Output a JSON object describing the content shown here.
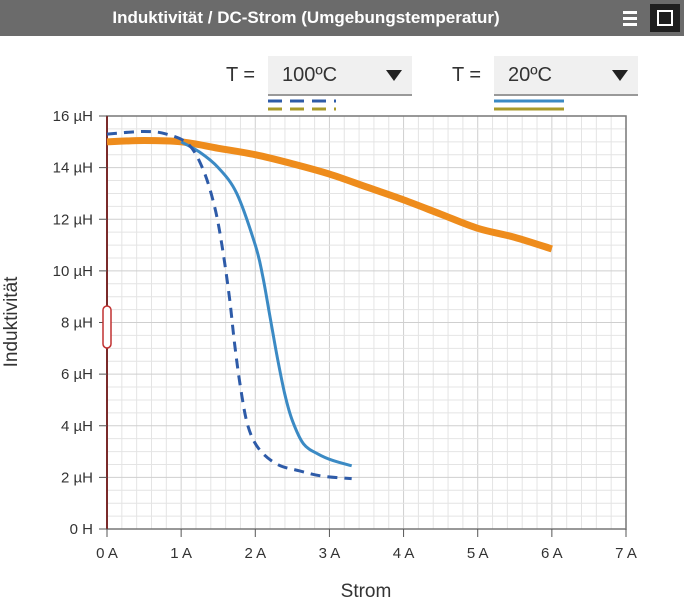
{
  "window": {
    "title": "Induktivität / DC-Strom (Umgebungstemperatur)"
  },
  "controls": {
    "left": {
      "label": "T =",
      "value": "100ºC"
    },
    "right": {
      "label": "T =",
      "value": "20ºC"
    }
  },
  "chart_data": {
    "type": "line",
    "xlabel": "Strom",
    "ylabel": "Induktivität",
    "xlim": [
      0,
      7
    ],
    "ylim": [
      0,
      16
    ],
    "xticks": [
      "0 A",
      "1 A",
      "2 A",
      "3 A",
      "4 A",
      "5 A",
      "6 A",
      "7 A"
    ],
    "yticks": [
      "0 H",
      "2 µH",
      "4 µH",
      "6 µH",
      "8 µH",
      "10 µH",
      "12 µH",
      "14 µH",
      "16 µH"
    ],
    "grid": true,
    "series": [
      {
        "temperature": "20ºC",
        "color": "#ee8c1c",
        "dash": "solid",
        "x": [
          0,
          0.5,
          1,
          1.5,
          2,
          2.5,
          3,
          3.5,
          4,
          4.5,
          5,
          5.5,
          6
        ],
        "y": [
          15.0,
          15.05,
          15.0,
          14.75,
          14.5,
          14.15,
          13.75,
          13.25,
          12.75,
          12.2,
          11.65,
          11.3,
          10.85
        ]
      },
      {
        "temperature": "20ºC",
        "color": "#3b8ac4",
        "dash": "solid",
        "x": [
          1,
          1.25,
          1.5,
          1.75,
          2,
          2.1,
          2.2,
          2.3,
          2.4,
          2.5,
          2.65,
          2.85,
          3.05,
          3.3
        ],
        "y": [
          15.0,
          14.6,
          14.0,
          13.0,
          11.0,
          9.8,
          8.2,
          6.6,
          5.2,
          4.2,
          3.3,
          2.9,
          2.65,
          2.45
        ]
      },
      {
        "temperature": "100ºC",
        "color": "#2e5ba8",
        "dash": "dashed",
        "x": [
          0,
          0.5,
          0.8,
          1.1,
          1.3,
          1.45,
          1.55,
          1.65,
          1.72,
          1.8,
          1.9,
          2.05,
          2.3,
          2.6,
          2.9,
          3.3
        ],
        "y": [
          15.3,
          15.4,
          15.3,
          14.9,
          13.9,
          12.5,
          11.0,
          9.0,
          7.2,
          5.5,
          4.0,
          3.1,
          2.5,
          2.25,
          2.05,
          1.95
        ]
      }
    ]
  }
}
